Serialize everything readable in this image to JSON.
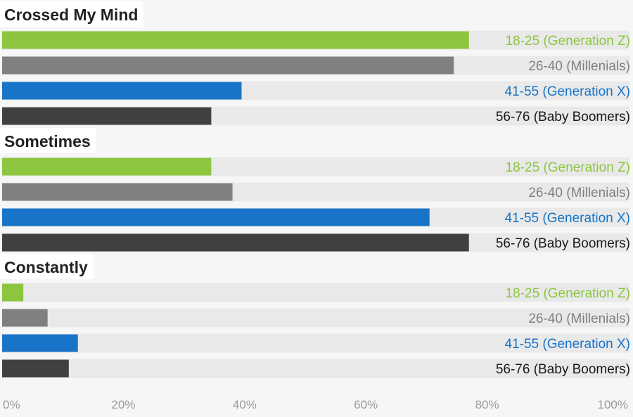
{
  "chart_data": {
    "type": "bar",
    "orientation": "horizontal",
    "title": "",
    "xlabel": "",
    "ylabel": "",
    "xlim": [
      0,
      100
    ],
    "x_ticks": [
      "0%",
      "20%",
      "40%",
      "60%",
      "80%",
      "100%"
    ],
    "series_names": [
      "18-25 (Generation Z)",
      "26-40 (Millenials)",
      "41-55 (Generation X)",
      "56-76 (Baby Boomers)"
    ],
    "series_colors": [
      "#8cc63f",
      "#808080",
      "#1874c8",
      "#404040"
    ],
    "label_colors": [
      "#8cc63f",
      "#808080",
      "#1874c8",
      "#1a1a1a"
    ],
    "groups": [
      {
        "name": "Crossed My Mind",
        "values": [
          77,
          74.5,
          39.5,
          34.5
        ]
      },
      {
        "name": "Sometimes",
        "values": [
          34.5,
          38,
          70.5,
          77
        ]
      },
      {
        "name": "Constantly",
        "values": [
          3.5,
          7.5,
          12.5,
          11
        ]
      }
    ]
  }
}
